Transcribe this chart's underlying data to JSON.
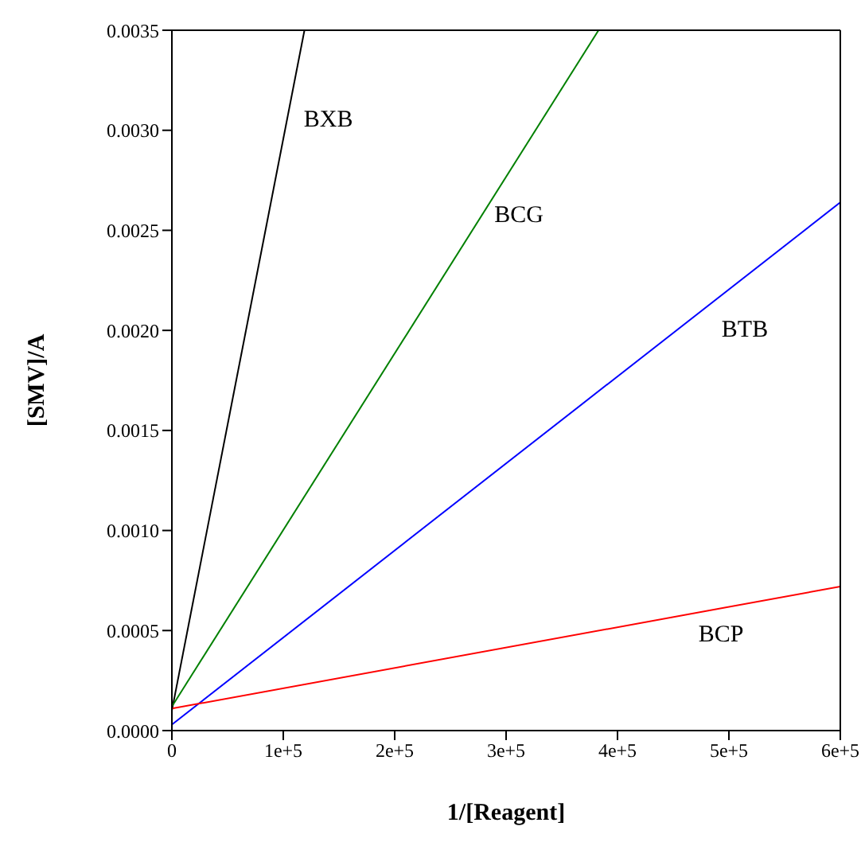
{
  "chart_data": {
    "type": "line",
    "xlabel": "1/[Reagent]",
    "ylabel": "[SMV]/A",
    "xlim": [
      0,
      600000
    ],
    "ylim": [
      0,
      0.0035
    ],
    "xticks": [
      0,
      {
        "value": 100000,
        "label": "1e+5"
      },
      {
        "value": 200000,
        "label": "2e+5"
      },
      {
        "value": 300000,
        "label": "3e+5"
      },
      {
        "value": 400000,
        "label": "4e+5"
      },
      {
        "value": 500000,
        "label": "5e+5"
      },
      {
        "value": 600000,
        "label": "6e+5"
      }
    ],
    "yticks": [
      {
        "value": 0,
        "label": "0.0000"
      },
      {
        "value": 0.0005,
        "label": "0.0005"
      },
      {
        "value": 0.001,
        "label": "0.0010"
      },
      {
        "value": 0.0015,
        "label": "0.0015"
      },
      {
        "value": 0.002,
        "label": "0.0020"
      },
      {
        "value": 0.0025,
        "label": "0.0025"
      },
      {
        "value": 0.003,
        "label": "0.0030"
      },
      {
        "value": 0.0035,
        "label": "0.0035"
      }
    ],
    "marker": "none",
    "line_style": "solid",
    "grid": false,
    "series": [
      {
        "name": "BXB",
        "color": "#000000",
        "x": [
          0,
          119000
        ],
        "values": [
          0.0001,
          0.0035
        ]
      },
      {
        "name": "BCG",
        "color": "#008000",
        "x": [
          0,
          383000
        ],
        "values": [
          0.00012,
          0.0035
        ]
      },
      {
        "name": "BTB",
        "color": "#0000ff",
        "x": [
          0,
          600000
        ],
        "values": [
          3e-05,
          0.00264
        ]
      },
      {
        "name": "BCP",
        "color": "#ff0000",
        "x": [
          0,
          600000
        ],
        "values": [
          0.00011,
          0.00072
        ]
      }
    ]
  }
}
